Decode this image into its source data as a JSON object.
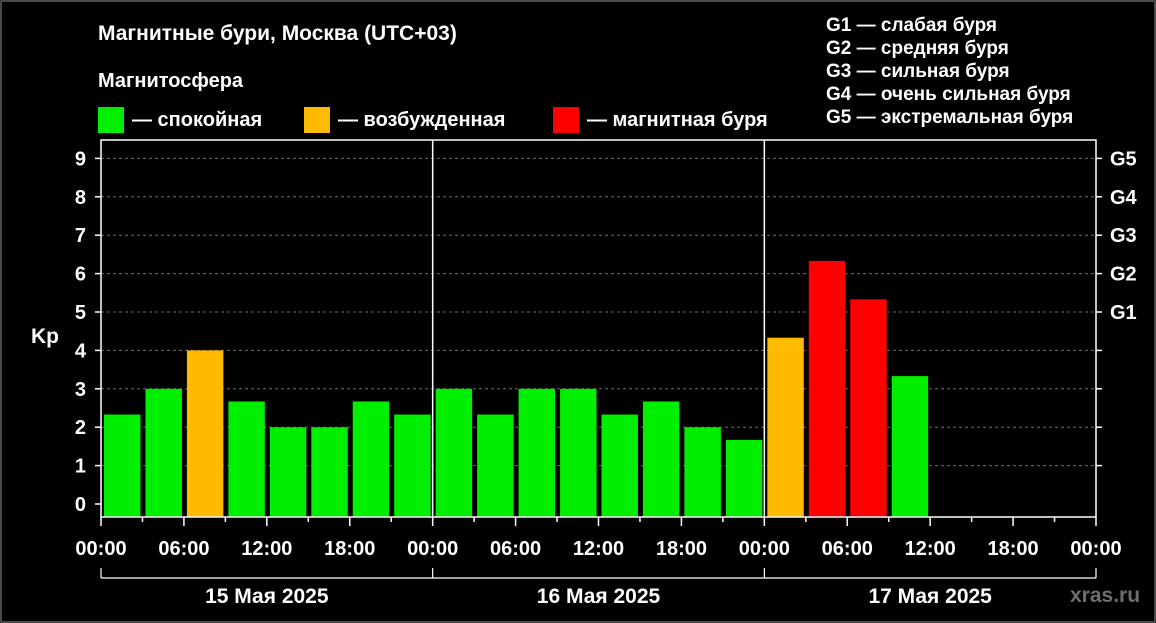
{
  "header": {
    "title": "Магнитные бури, Москва (UTC+03)",
    "subtitle": "Магнитосфера"
  },
  "legend": [
    {
      "label": "— спокойная",
      "color": "#00ee00"
    },
    {
      "label": "— возбужденная",
      "color": "#ffbb00"
    },
    {
      "label": "— магнитная буря",
      "color": "#ff0000"
    }
  ],
  "g_legend": [
    "G1 — слабая буря",
    "G2 — средняя буря",
    "G3 — сильная буря",
    "G4 — очень сильная буря",
    "G5 — экстремальная буря"
  ],
  "watermark": "xras.ru",
  "chart_data": {
    "type": "bar",
    "title": "Магнитные бури, Москва (UTC+03)",
    "ylabel": "Kp",
    "ylim": [
      0,
      9
    ],
    "yticks": [
      "0",
      "1",
      "2",
      "3",
      "4",
      "5",
      "6",
      "7",
      "8",
      "9"
    ],
    "right_ticks": [
      {
        "label": "G1",
        "kp": 5
      },
      {
        "label": "G2",
        "kp": 6
      },
      {
        "label": "G3",
        "kp": 7
      },
      {
        "label": "G4",
        "kp": 8
      },
      {
        "label": "G5",
        "kp": 9
      }
    ],
    "xtick_labels": [
      "00:00",
      "06:00",
      "12:00",
      "18:00",
      "00:00",
      "06:00",
      "12:00",
      "18:00",
      "00:00",
      "06:00",
      "12:00",
      "18:00",
      "00:00"
    ],
    "days": [
      "15 Мая 2025",
      "16 Мая 2025",
      "17 Мая 2025"
    ],
    "slots_per_day": 8,
    "grid": "dashed horizontal",
    "colors": {
      "quiet": "#00ee00",
      "active": "#ffbb00",
      "storm": "#ff0000"
    },
    "values": [
      2.33,
      3.0,
      4.0,
      2.67,
      2.0,
      2.0,
      2.67,
      2.33,
      3.0,
      2.33,
      3.0,
      3.0,
      2.33,
      2.67,
      2.0,
      1.67,
      4.33,
      6.33,
      5.33,
      3.33
    ],
    "status": [
      "quiet",
      "quiet",
      "active",
      "quiet",
      "quiet",
      "quiet",
      "quiet",
      "quiet",
      "quiet",
      "quiet",
      "quiet",
      "quiet",
      "quiet",
      "quiet",
      "quiet",
      "quiet",
      "active",
      "storm",
      "storm",
      "quiet"
    ]
  }
}
